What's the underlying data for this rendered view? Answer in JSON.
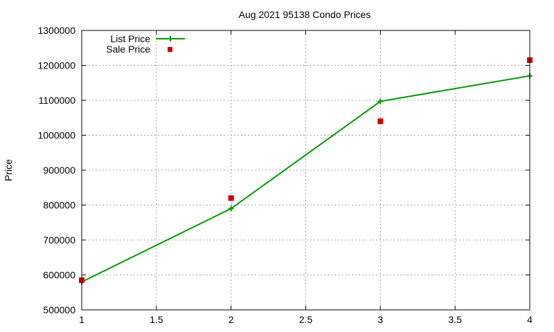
{
  "chart_data": {
    "type": "line",
    "title": "Aug 2021 95138 Condo Prices",
    "xlabel": "",
    "ylabel": "Price",
    "xlim": [
      1,
      4
    ],
    "ylim": [
      500000,
      1300000
    ],
    "x_ticks": [
      "1",
      "1.5",
      "2",
      "2.5",
      "3",
      "3.5",
      "4"
    ],
    "y_ticks": [
      "500000",
      "600000",
      "700000",
      "800000",
      "900000",
      "1000000",
      "1100000",
      "1200000",
      "1300000"
    ],
    "grid": true,
    "legend_position": "top-left",
    "series": [
      {
        "name": "List Price",
        "style": "linespoints",
        "color": "#009900",
        "marker": "plus",
        "x": [
          1,
          2,
          3,
          4
        ],
        "y": [
          580000,
          790000,
          1097000,
          1170000
        ]
      },
      {
        "name": "Sale Price",
        "style": "points",
        "color": "#cc0000",
        "marker": "square",
        "x": [
          1,
          2,
          3,
          4
        ],
        "y": [
          585000,
          820000,
          1040000,
          1215000
        ]
      }
    ]
  }
}
